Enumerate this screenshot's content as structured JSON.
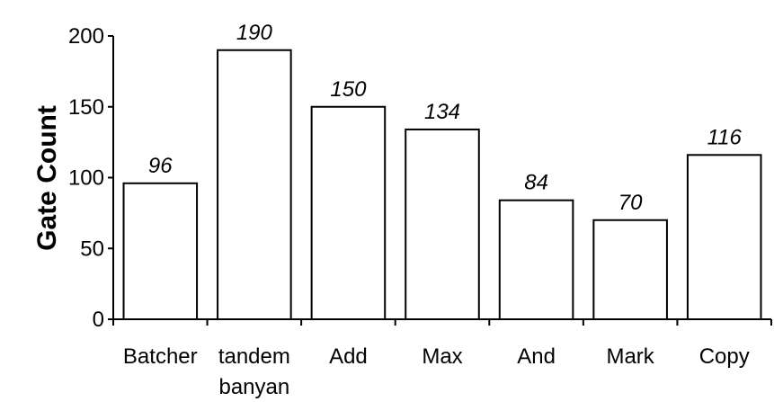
{
  "chart_data": {
    "type": "bar",
    "title": "",
    "xlabel": "",
    "ylabel": "Gate Count",
    "ylim": [
      0,
      200
    ],
    "yticks": [
      "0",
      "50",
      "100",
      "150",
      "200"
    ],
    "grid": false,
    "categories": [
      [
        "Batcher"
      ],
      [
        "tandem",
        "banyan"
      ],
      [
        "Add"
      ],
      [
        "Max"
      ],
      [
        "And"
      ],
      [
        "Mark"
      ],
      [
        "Copy"
      ]
    ],
    "values": [
      96,
      190,
      150,
      134,
      84,
      70,
      116
    ],
    "data_labels": [
      "96",
      "190",
      "150",
      "134",
      "84",
      "70",
      "116"
    ],
    "bar_color": "#ffffff",
    "edge_color": "#000000"
  }
}
